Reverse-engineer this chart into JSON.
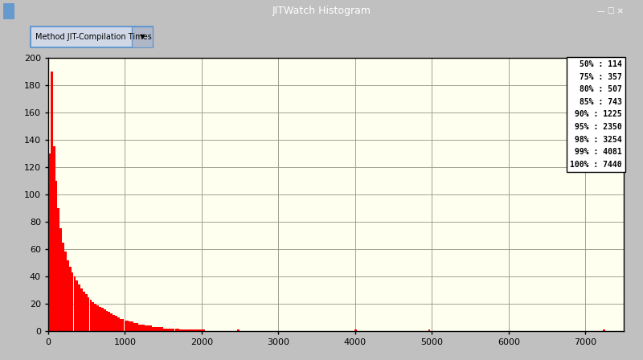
{
  "title": "JITWatch Histogram",
  "dropdown_label": "Method JIT-Compilation Times",
  "window_bg": "#3a3a3a",
  "content_bg": "#c0c0c0",
  "plot_bg_color": "#fffff0",
  "bar_color": "#ff0000",
  "grid_color": "#999988",
  "xlim": [
    0,
    7500
  ],
  "ylim": [
    0,
    200
  ],
  "xticks": [
    0,
    1000,
    2000,
    3000,
    4000,
    5000,
    6000,
    7000
  ],
  "yticks": [
    0,
    20,
    40,
    60,
    80,
    100,
    120,
    140,
    160,
    180,
    200
  ],
  "percentile_labels": [
    "50% : 114",
    "75% : 357",
    "80% : 507",
    "85% : 743",
    "90% : 1225",
    "95% : 2350",
    "98% : 3254",
    "99% : 4081",
    "100% : 7440"
  ],
  "bar_heights": [
    130,
    190,
    135,
    110,
    90,
    75,
    65,
    58,
    52,
    47,
    43,
    40,
    37,
    34,
    31,
    29,
    27,
    25,
    23,
    21,
    20,
    19,
    18,
    17,
    16,
    15,
    14,
    13,
    12,
    11,
    10,
    9,
    9,
    8,
    8,
    7,
    7,
    6,
    6,
    5,
    5,
    5,
    4,
    4,
    4,
    3,
    3,
    3,
    3,
    3,
    2,
    2,
    2,
    2,
    2,
    2,
    2,
    1,
    1,
    1,
    1,
    1,
    1,
    1,
    1,
    1,
    1,
    1,
    0,
    0,
    0,
    0,
    0,
    0,
    0,
    0,
    0,
    0,
    0,
    0,
    0,
    0,
    1,
    0,
    0,
    0,
    0,
    0,
    0,
    0,
    0,
    0,
    0,
    0,
    0,
    0,
    0,
    0,
    0,
    0,
    0,
    0,
    0,
    0,
    0,
    0,
    0,
    0,
    0,
    0,
    0,
    0,
    0,
    0,
    0,
    0,
    0,
    0,
    0,
    0,
    0,
    0,
    0,
    0,
    0,
    0,
    0,
    0,
    0,
    0,
    0,
    0,
    0,
    1,
    0,
    0,
    0,
    0,
    0,
    0,
    0,
    0,
    0,
    0,
    0,
    0,
    0,
    0,
    0,
    0,
    0,
    0,
    0,
    0,
    0,
    0,
    0,
    0,
    0,
    0,
    0,
    0,
    0,
    0,
    0,
    1,
    0,
    0,
    0,
    0,
    0,
    0,
    0,
    0,
    0,
    0,
    0,
    0,
    0,
    0,
    0,
    0,
    0,
    0,
    0,
    0,
    0,
    0,
    0,
    0,
    0,
    0,
    0,
    0,
    0,
    0,
    0,
    0,
    0,
    0,
    0,
    0,
    0,
    0,
    0,
    0,
    0,
    0,
    0,
    0,
    0,
    0,
    0,
    0,
    0,
    0,
    0,
    0,
    0,
    0,
    0,
    0,
    0,
    0,
    0,
    0,
    0,
    0,
    0,
    0,
    0,
    0,
    0,
    0,
    0,
    0,
    0,
    0,
    0,
    0,
    0,
    1
  ]
}
